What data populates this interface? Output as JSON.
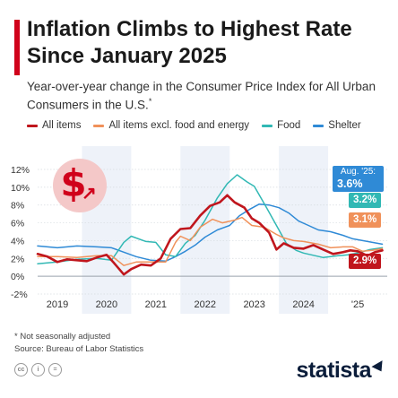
{
  "header": {
    "title": "Inflation Climbs to Highest Rate Since January 2025",
    "subtitle": "Year-over-year change in the Consumer Price Index for All Urban Consumers in the U.S.",
    "subtitle_mark": "*"
  },
  "footer": {
    "note": "* Not seasonally adjusted",
    "source": "Source: Bureau of Labor Statistics",
    "brand": "statista",
    "icons": [
      "creative-commons-icon",
      "attribution-icon",
      "no-derivatives-icon"
    ],
    "icon_glyphs": [
      "cc",
      "i",
      "="
    ]
  },
  "callouts": {
    "date": "Aug. '25:",
    "shelter": "3.6%",
    "food": "3.2%",
    "core": "3.1%",
    "all": "2.9%"
  },
  "colors": {
    "all_items": "#c0161d",
    "core": "#f0915a",
    "food": "#31b8b4",
    "shelter": "#2f8ad6",
    "band": "#eef2f9",
    "accent": "#d0021b"
  },
  "chart_data": {
    "type": "line",
    "ylim": [
      -2,
      12
    ],
    "y_ticks": [
      "-2%",
      "0%",
      "2%",
      "4%",
      "6%",
      "8%",
      "10%",
      "12%"
    ],
    "x_ticks": [
      "2019",
      "2020",
      "2021",
      "2022",
      "2023",
      "2024",
      "'25"
    ],
    "x_range": [
      "2018-08",
      "2025-08"
    ],
    "series": [
      {
        "name": "All items",
        "key": "all_items",
        "values": [
          [
            2018.6,
            2.5
          ],
          [
            2018.8,
            2.2
          ],
          [
            2019.0,
            1.6
          ],
          [
            2019.2,
            1.9
          ],
          [
            2019.4,
            1.8
          ],
          [
            2019.6,
            1.7
          ],
          [
            2019.8,
            2.1
          ],
          [
            2020.0,
            2.4
          ],
          [
            2020.15,
            1.5
          ],
          [
            2020.35,
            0.2
          ],
          [
            2020.5,
            0.8
          ],
          [
            2020.7,
            1.3
          ],
          [
            2020.9,
            1.2
          ],
          [
            2021.1,
            2.0
          ],
          [
            2021.3,
            4.2
          ],
          [
            2021.5,
            5.3
          ],
          [
            2021.7,
            5.4
          ],
          [
            2021.9,
            6.8
          ],
          [
            2022.1,
            7.9
          ],
          [
            2022.3,
            8.3
          ],
          [
            2022.45,
            9.1
          ],
          [
            2022.6,
            8.3
          ],
          [
            2022.8,
            7.7
          ],
          [
            2022.95,
            6.5
          ],
          [
            2023.1,
            6.0
          ],
          [
            2023.3,
            4.9
          ],
          [
            2023.45,
            3.0
          ],
          [
            2023.6,
            3.7
          ],
          [
            2023.8,
            3.2
          ],
          [
            2024.0,
            3.1
          ],
          [
            2024.2,
            3.5
          ],
          [
            2024.4,
            3.0
          ],
          [
            2024.6,
            2.5
          ],
          [
            2024.8,
            2.7
          ],
          [
            2024.95,
            2.9
          ],
          [
            2025.1,
            2.8
          ],
          [
            2025.3,
            2.3
          ],
          [
            2025.45,
            2.7
          ],
          [
            2025.6,
            2.9
          ]
        ]
      },
      {
        "name": "All items excl. food and energy",
        "key": "core",
        "values": [
          [
            2018.6,
            2.2
          ],
          [
            2019.0,
            2.2
          ],
          [
            2019.4,
            2.1
          ],
          [
            2019.8,
            2.3
          ],
          [
            2020.1,
            2.3
          ],
          [
            2020.35,
            1.2
          ],
          [
            2020.6,
            1.6
          ],
          [
            2020.9,
            1.6
          ],
          [
            2021.2,
            1.6
          ],
          [
            2021.4,
            3.8
          ],
          [
            2021.5,
            4.5
          ],
          [
            2021.7,
            4.0
          ],
          [
            2021.9,
            5.5
          ],
          [
            2022.15,
            6.4
          ],
          [
            2022.35,
            6.0
          ],
          [
            2022.6,
            6.3
          ],
          [
            2022.75,
            6.6
          ],
          [
            2022.95,
            5.7
          ],
          [
            2023.2,
            5.5
          ],
          [
            2023.45,
            4.7
          ],
          [
            2023.6,
            4.3
          ],
          [
            2023.8,
            4.0
          ],
          [
            2024.0,
            3.9
          ],
          [
            2024.3,
            3.6
          ],
          [
            2024.55,
            3.2
          ],
          [
            2024.8,
            3.3
          ],
          [
            2025.0,
            3.3
          ],
          [
            2025.2,
            2.8
          ],
          [
            2025.4,
            2.9
          ],
          [
            2025.6,
            3.1
          ]
        ]
      },
      {
        "name": "Food",
        "key": "food",
        "values": [
          [
            2018.6,
            1.4
          ],
          [
            2019.0,
            1.6
          ],
          [
            2019.4,
            1.9
          ],
          [
            2019.8,
            2.0
          ],
          [
            2020.1,
            1.8
          ],
          [
            2020.35,
            3.8
          ],
          [
            2020.5,
            4.5
          ],
          [
            2020.8,
            3.9
          ],
          [
            2021.0,
            3.8
          ],
          [
            2021.2,
            2.4
          ],
          [
            2021.4,
            2.2
          ],
          [
            2021.6,
            3.7
          ],
          [
            2021.8,
            4.6
          ],
          [
            2022.0,
            6.3
          ],
          [
            2022.25,
            8.8
          ],
          [
            2022.45,
            10.4
          ],
          [
            2022.65,
            11.4
          ],
          [
            2022.85,
            10.6
          ],
          [
            2023.0,
            10.1
          ],
          [
            2023.25,
            7.7
          ],
          [
            2023.45,
            5.7
          ],
          [
            2023.65,
            3.7
          ],
          [
            2023.85,
            2.9
          ],
          [
            2024.0,
            2.6
          ],
          [
            2024.4,
            2.1
          ],
          [
            2024.7,
            2.3
          ],
          [
            2024.9,
            2.4
          ],
          [
            2025.1,
            2.6
          ],
          [
            2025.35,
            3.0
          ],
          [
            2025.6,
            3.2
          ]
        ]
      },
      {
        "name": "Shelter",
        "key": "shelter",
        "values": [
          [
            2018.6,
            3.4
          ],
          [
            2019.0,
            3.2
          ],
          [
            2019.4,
            3.4
          ],
          [
            2019.8,
            3.3
          ],
          [
            2020.1,
            3.2
          ],
          [
            2020.35,
            2.7
          ],
          [
            2020.6,
            2.2
          ],
          [
            2020.9,
            1.8
          ],
          [
            2021.2,
            1.7
          ],
          [
            2021.4,
            2.2
          ],
          [
            2021.6,
            2.8
          ],
          [
            2021.8,
            3.5
          ],
          [
            2022.0,
            4.4
          ],
          [
            2022.25,
            5.2
          ],
          [
            2022.5,
            5.7
          ],
          [
            2022.7,
            6.8
          ],
          [
            2022.9,
            7.5
          ],
          [
            2023.1,
            8.1
          ],
          [
            2023.3,
            8.0
          ],
          [
            2023.5,
            7.7
          ],
          [
            2023.7,
            7.1
          ],
          [
            2023.9,
            6.2
          ],
          [
            2024.1,
            5.7
          ],
          [
            2024.3,
            5.2
          ],
          [
            2024.55,
            5.0
          ],
          [
            2024.8,
            4.6
          ],
          [
            2025.0,
            4.2
          ],
          [
            2025.2,
            4.0
          ],
          [
            2025.4,
            3.8
          ],
          [
            2025.6,
            3.6
          ]
        ]
      }
    ]
  }
}
